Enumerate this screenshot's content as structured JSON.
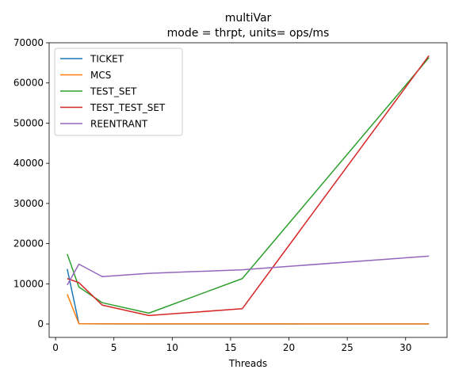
{
  "chart_data": {
    "type": "line",
    "title": "multiVar",
    "subtitle": "mode = thrpt, units= ops/ms",
    "xlabel": "Threads",
    "ylabel": "",
    "xlim": [
      -0.55,
      33.55
    ],
    "ylim": [
      -3340,
      70000
    ],
    "xticks": [
      0,
      5,
      10,
      15,
      20,
      25,
      30
    ],
    "yticks": [
      0,
      10000,
      20000,
      30000,
      40000,
      50000,
      60000,
      70000
    ],
    "grid": false,
    "legend_position": "top-left",
    "series": [
      {
        "name": "TICKET",
        "color": "#1f77b4",
        "x": [
          1,
          2,
          4,
          8,
          16,
          32
        ],
        "y": [
          13700,
          60,
          30,
          20,
          15,
          10
        ]
      },
      {
        "name": "MCS",
        "color": "#ff7f0e",
        "x": [
          1,
          2,
          4,
          8,
          16,
          32
        ],
        "y": [
          7400,
          60,
          40,
          30,
          25,
          20
        ]
      },
      {
        "name": "TEST_SET",
        "color": "#2ca02c",
        "x": [
          1,
          2,
          4,
          8,
          16,
          32
        ],
        "y": [
          17400,
          9200,
          5300,
          2700,
          11300,
          66300
        ]
      },
      {
        "name": "TEST_TEST_SET",
        "color": "#d62728",
        "x": [
          1,
          2,
          4,
          8,
          16,
          32
        ],
        "y": [
          11300,
          10300,
          4700,
          2100,
          3800,
          66800
        ]
      },
      {
        "name": "REENTRANT",
        "color": "#9467bd",
        "x": [
          1,
          2,
          4,
          8,
          16,
          32
        ],
        "y": [
          9700,
          14900,
          11800,
          12600,
          13500,
          16900
        ]
      }
    ]
  }
}
